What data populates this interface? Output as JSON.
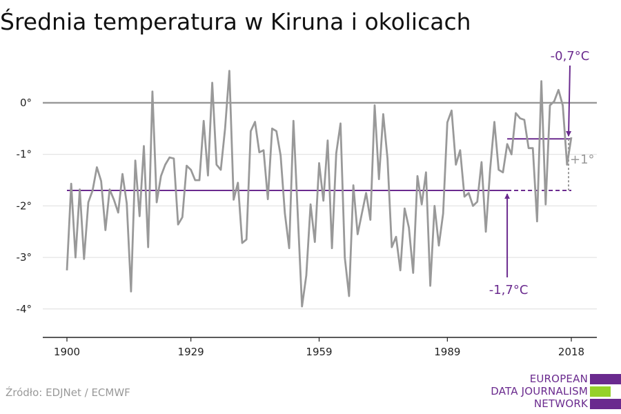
{
  "header": {
    "title": "Średnia temperatura w Kiruna i okolicach"
  },
  "footer": {
    "source": "Źródło: EDJNet / ECMWF"
  },
  "logo": {
    "lines": [
      "EUROPEAN",
      "DATA JOURNALISM",
      "NETWORK"
    ],
    "colors": [
      "#6a2a8e",
      "#95d12a",
      "#6a2a8e"
    ]
  },
  "colors": {
    "line": "#999999",
    "accent": "#6a2a8e",
    "zero_line": "#999999",
    "grid": "#dddddd",
    "axis": "#222222"
  },
  "chart_data": {
    "type": "line",
    "title": "Średnia temperatura w Kiruna i okolicach",
    "xlabel": "",
    "ylabel": "",
    "xlim": [
      1900,
      2018
    ],
    "ylim": [
      -4.5,
      0.9
    ],
    "x_ticks": [
      1900,
      1929,
      1959,
      1989,
      2018
    ],
    "x_tick_labels": [
      "1900",
      "1929",
      "1959",
      "1989",
      "2018"
    ],
    "y_ticks": [
      0,
      -1,
      -2,
      -3,
      -4
    ],
    "y_tick_labels": [
      "0°",
      "-1°",
      "-2°",
      "-3°",
      "-4°"
    ],
    "grid": true,
    "x": [
      1900,
      1901,
      1902,
      1903,
      1904,
      1905,
      1906,
      1907,
      1908,
      1909,
      1910,
      1911,
      1912,
      1913,
      1914,
      1915,
      1916,
      1917,
      1918,
      1919,
      1920,
      1921,
      1922,
      1923,
      1924,
      1925,
      1926,
      1927,
      1928,
      1929,
      1930,
      1931,
      1932,
      1933,
      1934,
      1935,
      1936,
      1937,
      1938,
      1939,
      1940,
      1941,
      1942,
      1943,
      1944,
      1945,
      1946,
      1947,
      1948,
      1949,
      1950,
      1951,
      1952,
      1953,
      1954,
      1955,
      1956,
      1957,
      1958,
      1959,
      1960,
      1961,
      1962,
      1963,
      1964,
      1965,
      1966,
      1967,
      1968,
      1969,
      1970,
      1971,
      1972,
      1973,
      1974,
      1975,
      1976,
      1977,
      1978,
      1979,
      1980,
      1981,
      1982,
      1983,
      1984,
      1985,
      1986,
      1987,
      1988,
      1989,
      1990,
      1991,
      1992,
      1993,
      1994,
      1995,
      1996,
      1997,
      1998,
      1999,
      2000,
      2001,
      2002,
      2003,
      2004,
      2005,
      2006,
      2007,
      2008,
      2009,
      2010,
      2011,
      2012,
      2013,
      2014,
      2015,
      2016,
      2017,
      2018
    ],
    "series": [
      {
        "values": [
          -3.25,
          -1.57,
          -3.0,
          -1.68,
          -3.03,
          -1.93,
          -1.7,
          -1.25,
          -1.52,
          -2.47,
          -1.68,
          -1.88,
          -2.13,
          -1.38,
          -1.95,
          -3.66,
          -1.12,
          -2.2,
          -0.84,
          -2.8,
          0.22,
          -1.93,
          -1.42,
          -1.2,
          -1.06,
          -1.08,
          -2.36,
          -2.22,
          -1.22,
          -1.3,
          -1.5,
          -1.5,
          -0.35,
          -1.41,
          0.39,
          -1.2,
          -1.3,
          -0.5,
          0.62,
          -1.88,
          -1.55,
          -2.72,
          -2.65,
          -0.55,
          -0.37,
          -0.96,
          -0.92,
          -1.87,
          -0.5,
          -0.55,
          -1.02,
          -2.15,
          -2.82,
          -0.35,
          -2.15,
          -3.95,
          -3.35,
          -1.97,
          -2.7,
          -1.17,
          -1.9,
          -0.73,
          -2.82,
          -0.98,
          -0.4,
          -3.0,
          -3.75,
          -1.6,
          -2.55,
          -2.15,
          -1.75,
          -2.27,
          -0.05,
          -1.48,
          -0.22,
          -1.08,
          -2.8,
          -2.6,
          -3.25,
          -2.05,
          -2.42,
          -3.3,
          -1.42,
          -1.97,
          -1.35,
          -3.55,
          -2.0,
          -2.77,
          -2.15,
          -0.38,
          -0.15,
          -1.2,
          -0.92,
          -1.82,
          -1.75,
          -2.0,
          -1.92,
          -1.15,
          -2.5,
          -1.3,
          -0.37,
          -1.3,
          -1.35,
          -0.8,
          -1.0,
          -0.2,
          -0.3,
          -0.33,
          -0.88,
          -0.88,
          -2.3,
          0.42,
          -1.97,
          -0.05,
          0.03,
          0.25,
          -0.05,
          -1.2,
          -0.67
        ]
      }
    ],
    "annotations": [
      {
        "text": "-1,7°C",
        "level": -1.7,
        "x_start": 1900,
        "x_end": 2018,
        "solid_end": 2003
      },
      {
        "text": "-0,7°C",
        "level": -0.7,
        "x_start": 2003,
        "x_end": 2018
      },
      {
        "text": "+1°"
      }
    ]
  }
}
